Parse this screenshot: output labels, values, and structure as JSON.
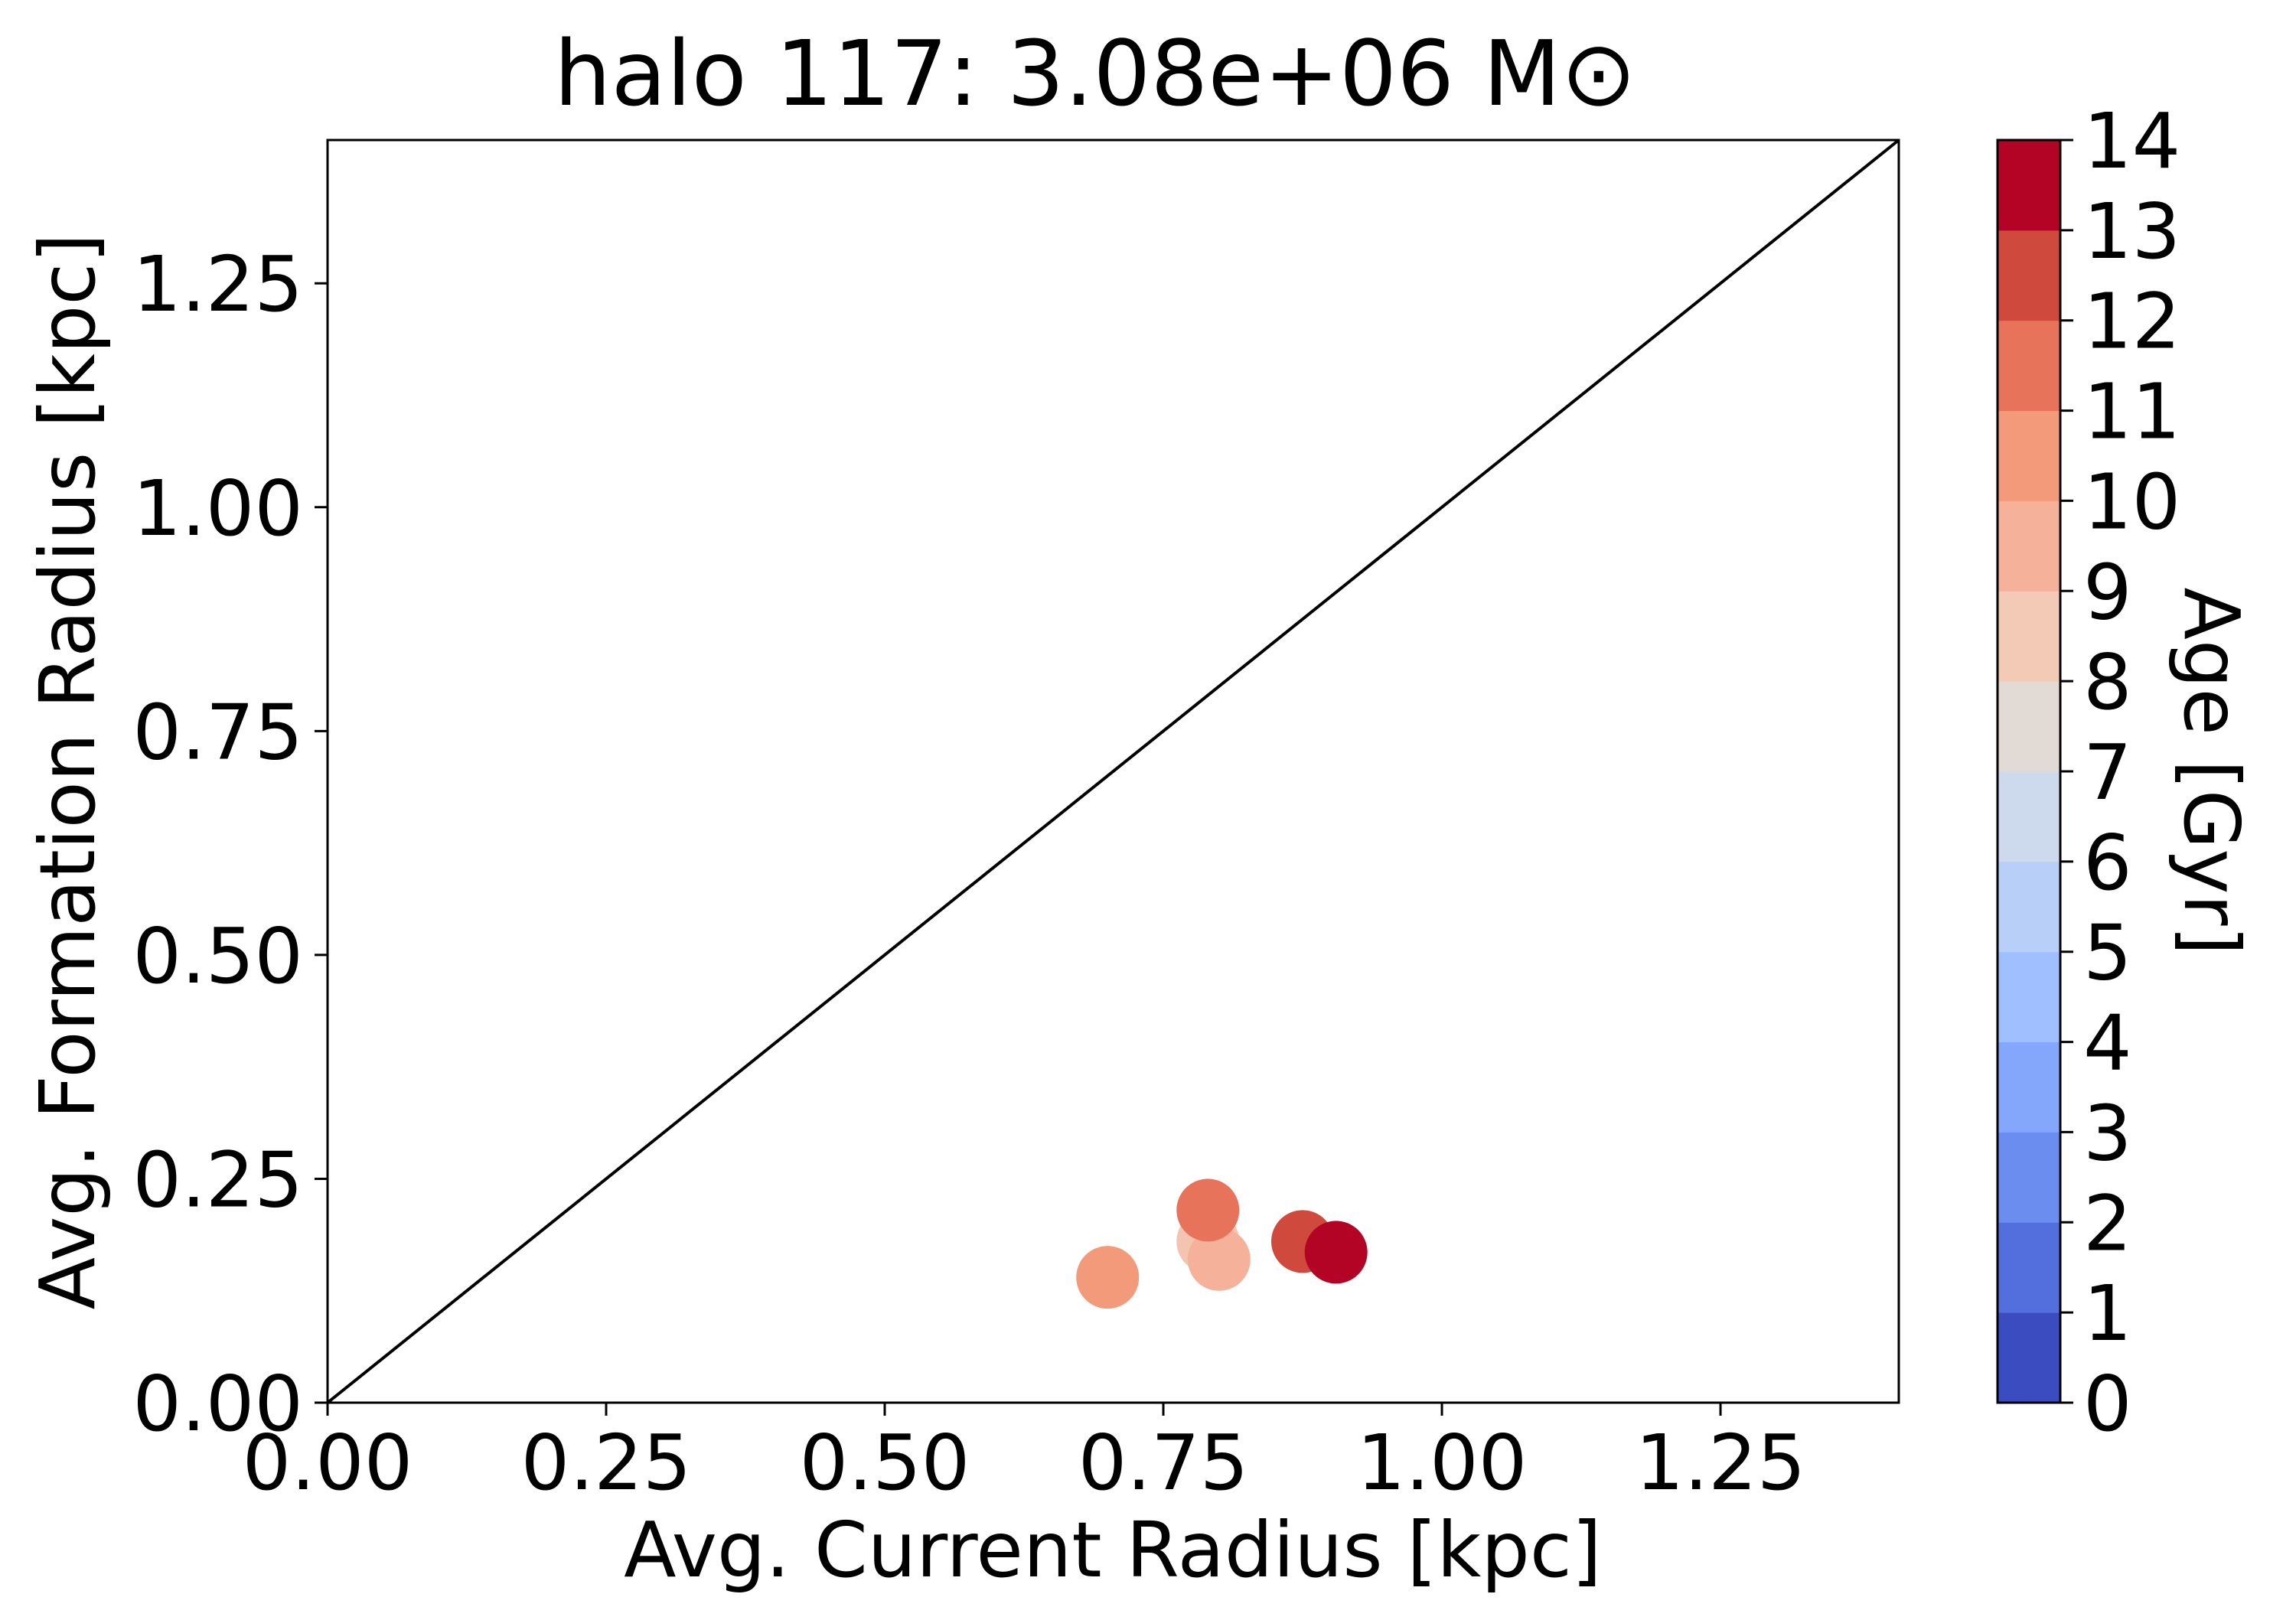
{
  "chart_data": {
    "type": "scatter",
    "title": "halo 117: 3.08e+06 M⊙",
    "xlabel": "Avg. Current Radius [kpc]",
    "ylabel": "Avg. Formation Radius [kpc]",
    "xlim": [
      0,
      1.41
    ],
    "ylim": [
      0,
      1.41
    ],
    "xticks": [
      "0.00",
      "0.25",
      "0.50",
      "0.75",
      "1.00",
      "1.25"
    ],
    "yticks": [
      "0.00",
      "0.25",
      "0.50",
      "0.75",
      "1.00",
      "1.25"
    ],
    "reference_line": "y = x",
    "grid": false,
    "points": [
      {
        "x": 0.7,
        "y": 0.14,
        "age": 10.5,
        "color": "#f39a7b"
      },
      {
        "x": 0.79,
        "y": 0.18,
        "age": 8.5,
        "color": "#f3c4b0"
      },
      {
        "x": 0.8,
        "y": 0.16,
        "age": 9.5,
        "color": "#f5b19a"
      },
      {
        "x": 0.79,
        "y": 0.215,
        "age": 11.5,
        "color": "#e7735a"
      },
      {
        "x": 0.875,
        "y": 0.18,
        "age": 12.5,
        "color": "#cf4a3d"
      },
      {
        "x": 0.905,
        "y": 0.168,
        "age": 13.5,
        "color": "#b40426"
      }
    ],
    "colorbar": {
      "label": "Age [Gyr]",
      "min": 0,
      "max": 14,
      "ticks": [
        "0",
        "1",
        "2",
        "3",
        "4",
        "5",
        "6",
        "7",
        "8",
        "9",
        "10",
        "11",
        "12",
        "13",
        "14"
      ],
      "colors": [
        "#3b4cc0",
        "#536edd",
        "#6b8df0",
        "#84a7fc",
        "#9fbfff",
        "#b8cff8",
        "#cdd9ec",
        "#e2dad5",
        "#f2cab5",
        "#f5b19a",
        "#f39a7b",
        "#e7735a",
        "#cf4a3d",
        "#b40426"
      ]
    }
  }
}
